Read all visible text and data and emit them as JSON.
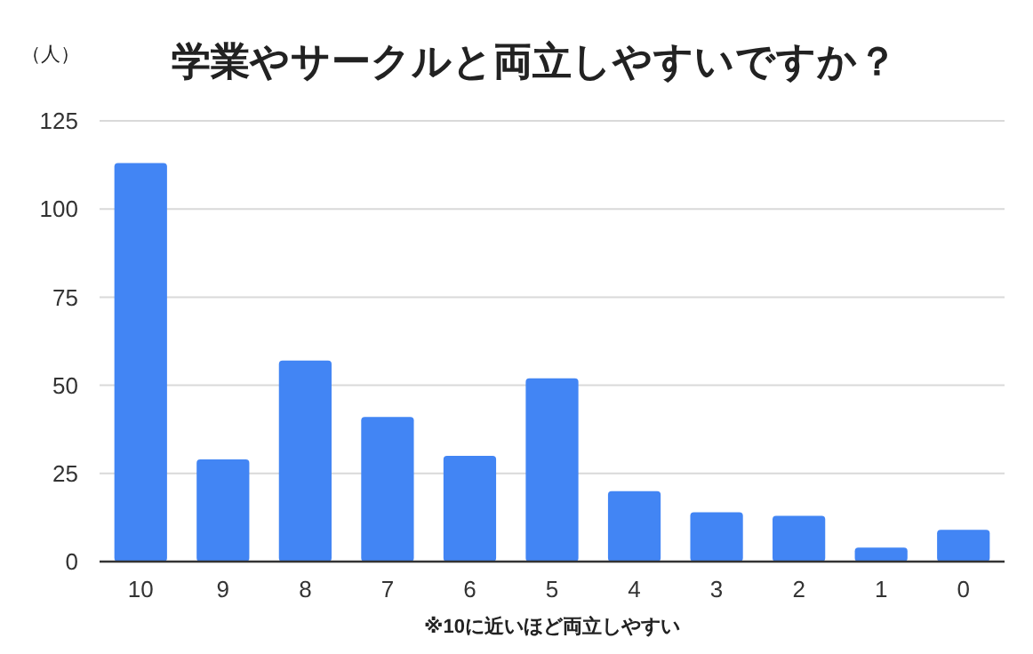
{
  "chart_data": {
    "type": "bar",
    "title": "学業やサークルと両立しやすいですか？",
    "ylabel": "（人）",
    "xlabel": "※10に近いほど両立しやすい",
    "categories": [
      "10",
      "9",
      "8",
      "7",
      "6",
      "5",
      "4",
      "3",
      "2",
      "1",
      "0"
    ],
    "values": [
      113,
      29,
      57,
      41,
      30,
      52,
      20,
      14,
      13,
      4,
      9
    ],
    "color": "#4285f4",
    "ylim": [
      0,
      125
    ],
    "yticks": [
      0,
      25,
      50,
      75,
      100,
      125
    ],
    "grid": "y"
  }
}
